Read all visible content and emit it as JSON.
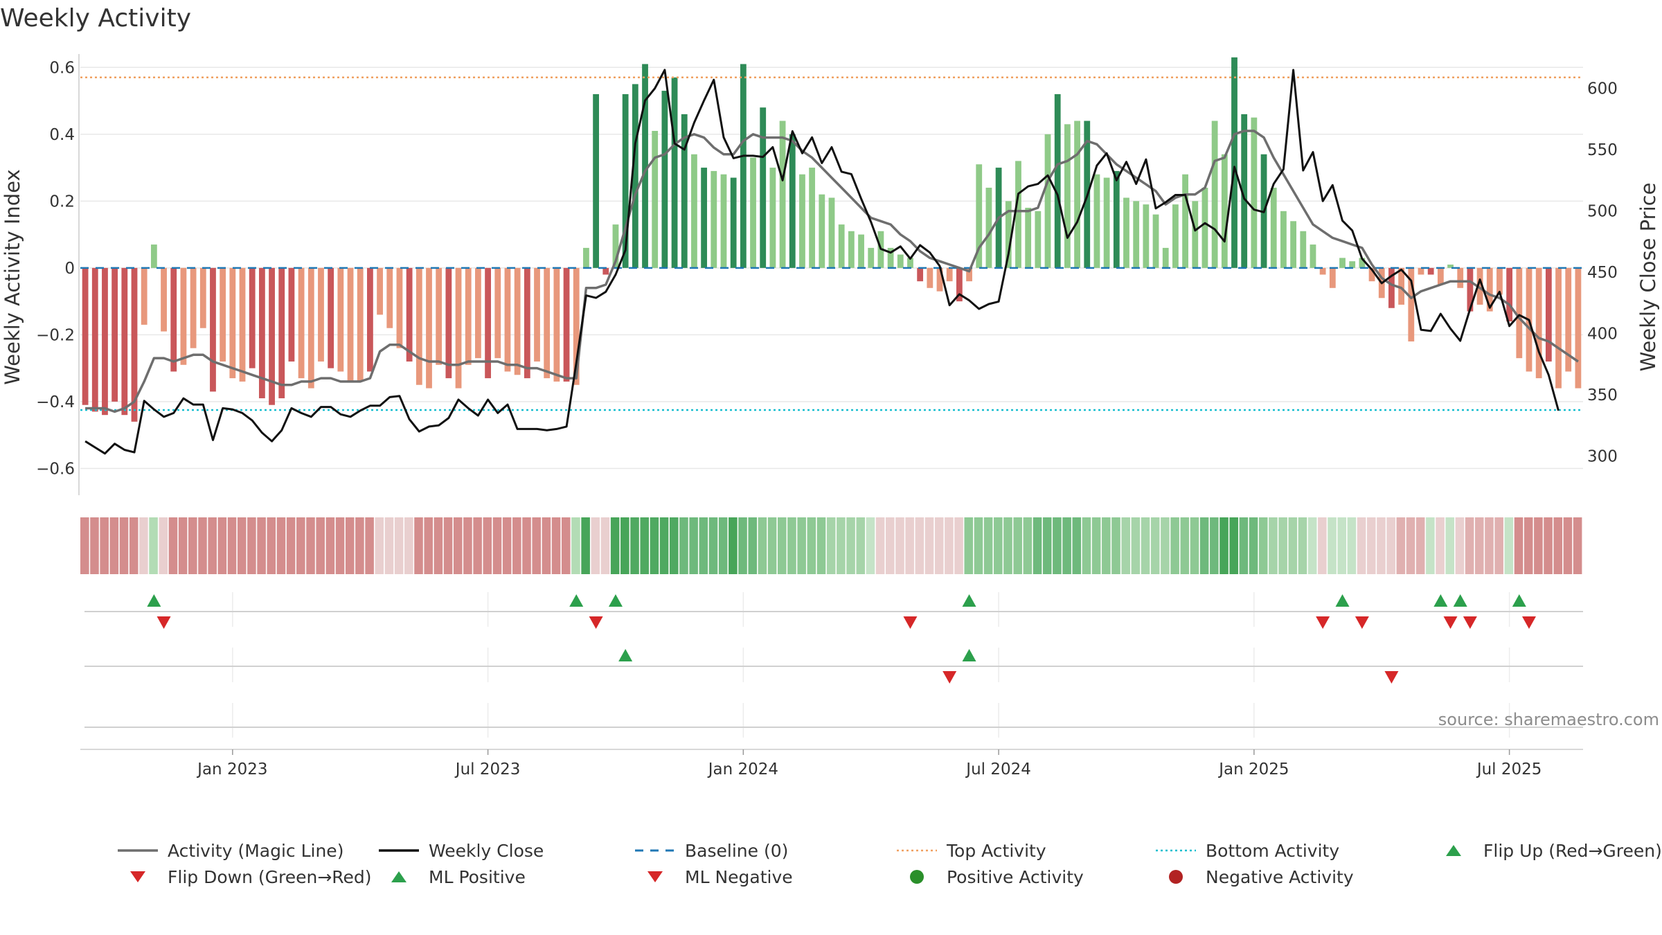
{
  "title": "Weekly Activity",
  "source": "source: sharemaestro.com",
  "colors": {
    "red_dark": "#c9575a",
    "red_light": "#e8987c",
    "green_dark": "#2e8b57",
    "green_light": "#8fca88",
    "magic_line": "#6e6e6e",
    "close_line": "#111111",
    "baseline": "#1f77b4",
    "top_line": "#f0a060",
    "bottom_line": "#17becf",
    "flip_up": "#2ca04c",
    "flip_down": "#d62728",
    "pos_dot": "#2a8f2a",
    "neg_dot": "#b22222"
  },
  "chart_data": {
    "type": "bar",
    "title": "Weekly Activity",
    "ylabel": "Weekly Activity Index",
    "y2label": "Weekly Close Price",
    "ylim": [
      -0.68,
      0.64
    ],
    "y2lim": [
      268,
      628
    ],
    "yticks": [
      0.6,
      0.4,
      0.2,
      0,
      -0.2,
      -0.4,
      -0.6
    ],
    "ytick_labels": [
      "0.6",
      "0.4",
      "0.2",
      "0",
      "−0.2",
      "−0.4",
      "−0.6"
    ],
    "y2ticks": [
      600,
      550,
      500,
      450,
      400,
      350,
      300
    ],
    "y2tick_labels": [
      "600",
      "550",
      "500",
      "450",
      "400",
      "350",
      "300"
    ],
    "xticks": [
      {
        "week": 15,
        "label": "Jan 2023"
      },
      {
        "week": 41,
        "label": "Jul 2023"
      },
      {
        "week": 67,
        "label": "Jan 2024"
      },
      {
        "week": 93,
        "label": "Jul 2024"
      },
      {
        "week": 119,
        "label": "Jan 2025"
      },
      {
        "week": 145,
        "label": "Jul 2025"
      }
    ],
    "top_activity": 0.57,
    "bottom_activity": -0.425,
    "baseline": 0,
    "activity": [
      -0.41,
      -0.43,
      -0.44,
      -0.4,
      -0.44,
      -0.46,
      -0.17,
      0.07,
      -0.19,
      -0.31,
      -0.29,
      -0.24,
      -0.18,
      -0.37,
      -0.28,
      -0.33,
      -0.34,
      -0.3,
      -0.39,
      -0.41,
      -0.39,
      -0.28,
      -0.33,
      -0.36,
      -0.28,
      -0.3,
      -0.31,
      -0.34,
      -0.34,
      -0.31,
      -0.14,
      -0.18,
      -0.24,
      -0.28,
      -0.35,
      -0.36,
      -0.29,
      -0.33,
      -0.36,
      -0.29,
      -0.27,
      -0.33,
      -0.27,
      -0.31,
      -0.32,
      -0.33,
      -0.28,
      -0.33,
      -0.34,
      -0.34,
      -0.35,
      0.06,
      0.52,
      -0.02,
      0.13,
      0.52,
      0.55,
      0.61,
      0.41,
      0.53,
      0.57,
      0.46,
      0.34,
      0.3,
      0.29,
      0.28,
      0.27,
      0.61,
      0.33,
      0.48,
      0.3,
      0.44,
      0.4,
      0.28,
      0.3,
      0.22,
      0.21,
      0.13,
      0.11,
      0.1,
      0.06,
      0.11,
      0.06,
      0.04,
      0.03,
      -0.04,
      -0.06,
      -0.07,
      -0.04,
      -0.1,
      -0.04,
      0.31,
      0.24,
      0.3,
      0.2,
      0.32,
      0.18,
      0.17,
      0.4,
      0.52,
      0.43,
      0.44,
      0.44,
      0.28,
      0.27,
      0.29,
      0.21,
      0.2,
      0.19,
      0.16,
      0.06,
      0.19,
      0.28,
      0.2,
      0.24,
      0.44,
      0.34,
      0.63,
      0.46,
      0.45,
      0.34,
      0.24,
      0.17,
      0.14,
      0.11,
      0.07,
      -0.02,
      -0.06,
      0.03,
      0.02,
      0.03,
      -0.04,
      -0.09,
      -0.12,
      -0.11,
      -0.22,
      -0.02,
      -0.02,
      -0.05,
      0.01,
      -0.06,
      -0.13,
      -0.11,
      -0.13,
      -0.08,
      -0.16,
      -0.27,
      -0.31,
      -0.33,
      -0.28,
      -0.36,
      -0.31,
      -0.36
    ],
    "magic_line": [
      -0.42,
      -0.42,
      -0.42,
      -0.43,
      -0.42,
      -0.4,
      -0.34,
      -0.27,
      -0.27,
      -0.28,
      -0.27,
      -0.26,
      -0.26,
      -0.28,
      -0.29,
      -0.3,
      -0.31,
      -0.32,
      -0.33,
      -0.34,
      -0.35,
      -0.35,
      -0.34,
      -0.34,
      -0.33,
      -0.33,
      -0.34,
      -0.34,
      -0.34,
      -0.33,
      -0.25,
      -0.23,
      -0.23,
      -0.25,
      -0.27,
      -0.28,
      -0.28,
      -0.29,
      -0.29,
      -0.28,
      -0.28,
      -0.28,
      -0.28,
      -0.29,
      -0.29,
      -0.3,
      -0.3,
      -0.31,
      -0.32,
      -0.33,
      -0.33,
      -0.06,
      -0.06,
      -0.05,
      0.02,
      0.12,
      0.22,
      0.29,
      0.33,
      0.34,
      0.37,
      0.39,
      0.4,
      0.39,
      0.36,
      0.34,
      0.34,
      0.38,
      0.4,
      0.39,
      0.39,
      0.39,
      0.38,
      0.35,
      0.33,
      0.3,
      0.27,
      0.24,
      0.21,
      0.18,
      0.15,
      0.14,
      0.13,
      0.1,
      0.08,
      0.05,
      0.03,
      0.02,
      0.01,
      0.0,
      -0.01,
      0.06,
      0.1,
      0.15,
      0.17,
      0.17,
      0.17,
      0.18,
      0.26,
      0.31,
      0.32,
      0.34,
      0.38,
      0.37,
      0.34,
      0.31,
      0.29,
      0.27,
      0.25,
      0.23,
      0.19,
      0.21,
      0.22,
      0.22,
      0.24,
      0.32,
      0.33,
      0.4,
      0.41,
      0.41,
      0.39,
      0.33,
      0.28,
      0.23,
      0.18,
      0.13,
      0.11,
      0.09,
      0.08,
      0.07,
      0.06,
      0.01,
      -0.03,
      -0.05,
      -0.06,
      -0.09,
      -0.07,
      -0.06,
      -0.05,
      -0.04,
      -0.04,
      -0.04,
      -0.06,
      -0.08,
      -0.09,
      -0.11,
      -0.15,
      -0.18,
      -0.21,
      -0.22,
      -0.24,
      -0.26,
      -0.28
    ],
    "weekly_close": [
      312,
      307,
      302,
      310,
      305,
      303,
      345,
      338,
      332,
      335,
      347,
      342,
      342,
      313,
      339,
      338,
      335,
      329,
      319,
      312,
      321,
      339,
      335,
      332,
      340,
      340,
      334,
      332,
      337,
      341,
      341,
      348,
      349,
      330,
      320,
      324,
      325,
      331,
      346,
      339,
      333,
      346,
      335,
      342,
      322,
      322,
      322,
      321,
      322,
      324,
      376,
      431,
      429,
      434,
      448,
      468,
      555,
      590,
      600,
      615,
      555,
      550,
      572,
      590,
      607,
      560,
      543,
      545,
      545,
      544,
      552,
      525,
      565,
      547,
      560,
      539,
      552,
      532,
      530,
      510,
      491,
      469,
      466,
      471,
      461,
      472,
      466,
      455,
      423,
      432,
      427,
      420,
      424,
      426,
      465,
      514,
      520,
      522,
      529,
      513,
      478,
      491,
      512,
      537,
      547,
      525,
      540,
      522,
      542,
      502,
      507,
      513,
      513,
      484,
      490,
      485,
      475,
      536,
      510,
      501,
      499,
      522,
      534,
      615,
      533,
      548,
      508,
      521,
      492,
      484,
      461,
      452,
      441,
      447,
      452,
      443,
      403,
      402,
      416,
      404,
      394,
      420,
      444,
      421,
      434,
      406,
      415,
      411,
      385,
      366,
      337
    ],
    "strip_colors": [
      "#d48d8d",
      "#d48d8d",
      "#d48d8d",
      "#d48d8d",
      "#d48d8d",
      "#d48d8d",
      "#e9cfcf",
      "#b3dcb5",
      "#e9cfcf",
      "#d48d8d",
      "#d48d8d",
      "#d48d8d",
      "#d48d8d",
      "#d48d8d",
      "#d48d8d",
      "#d48d8d",
      "#d48d8d",
      "#d48d8d",
      "#d48d8d",
      "#d48d8d",
      "#d48d8d",
      "#d48d8d",
      "#d48d8d",
      "#d48d8d",
      "#d48d8d",
      "#d48d8d",
      "#d48d8d",
      "#d48d8d",
      "#d48d8d",
      "#d48d8d",
      "#e9cfcf",
      "#e9cfcf",
      "#e9cfcf",
      "#e9cfcf",
      "#d48d8d",
      "#d48d8d",
      "#d48d8d",
      "#d48d8d",
      "#d48d8d",
      "#d48d8d",
      "#d48d8d",
      "#d48d8d",
      "#d48d8d",
      "#d48d8d",
      "#d48d8d",
      "#d48d8d",
      "#d48d8d",
      "#d48d8d",
      "#d48d8d",
      "#d48d8d",
      "#b3dcb5",
      "#47a559",
      "#e9cfcf",
      "#e9cfcf",
      "#47a559",
      "#47a559",
      "#4fa961",
      "#4fa961",
      "#4fa961",
      "#4fa961",
      "#4fa961",
      "#6eb97c",
      "#6eb97c",
      "#6eb97c",
      "#6eb97c",
      "#6eb97c",
      "#47a559",
      "#6eb97c",
      "#6eb97c",
      "#8ec994",
      "#8ec994",
      "#8ec994",
      "#8ec994",
      "#8ec994",
      "#8ec994",
      "#8ec994",
      "#a6d4a9",
      "#a6d4a9",
      "#a6d4a9",
      "#a6d4a9",
      "#c5e3c7",
      "#e9cfcf",
      "#e9cfcf",
      "#e9cfcf",
      "#e9cfcf",
      "#e9cfcf",
      "#e9cfcf",
      "#e9cfcf",
      "#e9cfcf",
      "#e9cfcf",
      "#8ec994",
      "#8ec994",
      "#8ec994",
      "#8ec994",
      "#8ec994",
      "#8ec994",
      "#8ec994",
      "#6eb97c",
      "#6eb97c",
      "#6eb97c",
      "#6eb97c",
      "#6eb97c",
      "#8ec994",
      "#8ec994",
      "#8ec994",
      "#8ec994",
      "#a6d4a9",
      "#a6d4a9",
      "#a6d4a9",
      "#a6d4a9",
      "#a6d4a9",
      "#8ec994",
      "#8ec994",
      "#8ec994",
      "#6eb97c",
      "#6eb97c",
      "#47a559",
      "#47a559",
      "#6eb97c",
      "#6eb97c",
      "#8ec994",
      "#a6d4a9",
      "#a6d4a9",
      "#a6d4a9",
      "#a6d4a9",
      "#c5e3c7",
      "#e9cfcf",
      "#c5e3c7",
      "#c5e3c7",
      "#c5e3c7",
      "#e9cfcf",
      "#e9cfcf",
      "#e9cfcf",
      "#e9cfcf",
      "#e0b0b0",
      "#e0b0b0",
      "#e0b0b0",
      "#c5e3c7",
      "#e9cfcf",
      "#c5e3c7",
      "#e9cfcf",
      "#e0b0b0",
      "#e0b0b0",
      "#e0b0b0",
      "#e0b0b0",
      "#c5e3c7",
      "#d48d8d",
      "#d48d8d",
      "#d48d8d",
      "#d48d8d",
      "#d48d8d",
      "#d48d8d",
      "#d48d8d"
    ],
    "flip_up": [
      7,
      50,
      54,
      90,
      128,
      138,
      140,
      146
    ],
    "flip_down": [
      8,
      52,
      84,
      126,
      130,
      139,
      141,
      147
    ],
    "ml_positive": [
      55,
      90
    ],
    "ml_negative": [
      88,
      133
    ]
  },
  "legend": [
    {
      "key": "magic_line",
      "label": "Activity (Magic Line)",
      "symbol": "line"
    },
    {
      "key": "close_line",
      "label": "Weekly Close",
      "symbol": "line"
    },
    {
      "key": "baseline",
      "label": "Baseline (0)",
      "symbol": "dash"
    },
    {
      "key": "top_line",
      "label": "Top Activity",
      "symbol": "dot"
    },
    {
      "key": "bottom_line",
      "label": "Bottom Activity",
      "symbol": "dot"
    },
    {
      "key": "flip_up",
      "label": "Flip Up (Red→Green)",
      "symbol": "tri-up"
    },
    {
      "key": "flip_down",
      "label": "Flip Down (Green→Red)",
      "symbol": "tri-down"
    },
    {
      "key": "flip_up",
      "label": "ML Positive",
      "symbol": "tri-up"
    },
    {
      "key": "flip_down",
      "label": "ML Negative",
      "symbol": "tri-down"
    },
    {
      "key": "pos_dot",
      "label": "Positive Activity",
      "symbol": "circle"
    },
    {
      "key": "neg_dot",
      "label": "Negative Activity",
      "symbol": "circle"
    }
  ]
}
